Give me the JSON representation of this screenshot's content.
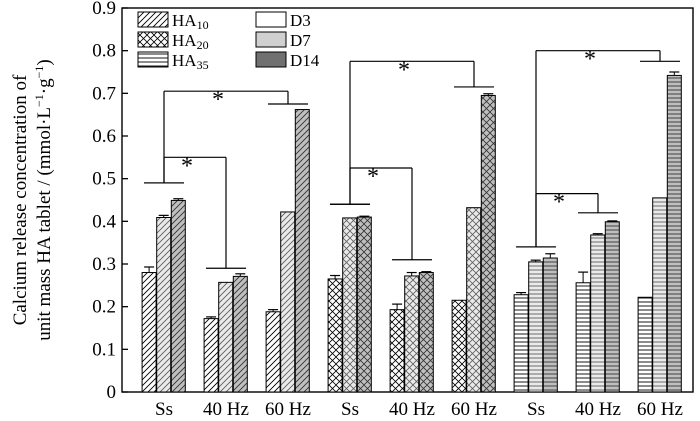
{
  "chart_data": {
    "type": "bar",
    "ylabel": [
      "Calcium release concentration of",
      "unit mass HA tablet / (mmol·L",
      "·g",
      ")"
    ],
    "ylabel_sup": [
      "−1",
      "−1"
    ],
    "ylim": [
      0,
      0.9
    ],
    "yticks": [
      "0",
      "0.1",
      "0.2",
      "0.3",
      "0.4",
      "0.5",
      "0.6",
      "0.7",
      "0.8",
      "0.9"
    ],
    "categories": [
      "Ss",
      "40 Hz",
      "60 Hz",
      "Ss",
      "40 Hz",
      "60 Hz",
      "Ss",
      "40 Hz",
      "60 Hz"
    ],
    "material_groups": [
      {
        "name": "HA",
        "sub": "10",
        "pattern": "diag"
      },
      {
        "name": "HA",
        "sub": "20",
        "pattern": "cross"
      },
      {
        "name": "HA",
        "sub": "35",
        "pattern": "horiz"
      }
    ],
    "days": [
      {
        "name": "D3",
        "fill": "#ffffff"
      },
      {
        "name": "D7",
        "fill": "#d0d0d0"
      },
      {
        "name": "D14",
        "fill": "#707070"
      }
    ],
    "series": [
      {
        "name": "D3",
        "values": [
          0.28,
          0.172,
          0.188,
          0.265,
          0.193,
          0.215,
          0.228,
          0.256,
          0.222
        ],
        "errors": [
          0.013,
          0.004,
          0.005,
          0.008,
          0.013,
          0,
          0.005,
          0.025,
          0
        ]
      },
      {
        "name": "D7",
        "values": [
          0.409,
          0.257,
          0.422,
          0.408,
          0.272,
          0.432,
          0.305,
          0.368,
          0.455
        ],
        "errors": [
          0.005,
          0,
          0,
          0,
          0.008,
          0,
          0.004,
          0.003,
          0
        ]
      },
      {
        "name": "D14",
        "values": [
          0.449,
          0.271,
          0.662,
          0.41,
          0.28,
          0.695,
          0.314,
          0.399,
          0.742
        ],
        "errors": [
          0.004,
          0.006,
          0,
          0.002,
          0.002,
          0.004,
          0.01,
          0.002,
          0.008
        ]
      }
    ],
    "significance": [
      {
        "from": 0,
        "to": 1,
        "y_from": 0.49,
        "y_to": 0.29,
        "y_bar": 0.55,
        "label": "*"
      },
      {
        "from": 0,
        "to": 2,
        "y_from": 0.49,
        "y_to": 0.675,
        "y_bar": 0.705,
        "label": "*"
      },
      {
        "from": 3,
        "to": 4,
        "y_from": 0.44,
        "y_to": 0.31,
        "y_bar": 0.525,
        "label": "*"
      },
      {
        "from": 3,
        "to": 5,
        "y_from": 0.44,
        "y_to": 0.715,
        "y_bar": 0.775,
        "label": "*"
      },
      {
        "from": 6,
        "to": 7,
        "y_from": 0.34,
        "y_to": 0.42,
        "y_bar": 0.465,
        "label": "*"
      },
      {
        "from": 6,
        "to": 8,
        "y_from": 0.34,
        "y_to": 0.775,
        "y_bar": 0.8,
        "label": "*"
      }
    ]
  }
}
